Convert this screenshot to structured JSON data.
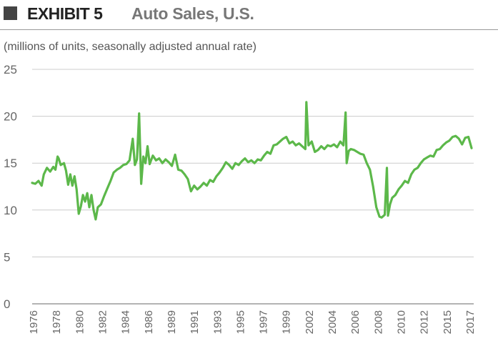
{
  "header": {
    "exhibit_label": "EXHIBIT 5",
    "title": "Auto Sales, U.S."
  },
  "subtitle": "(millions of units, seasonally adjusted annual rate)",
  "colors": {
    "line": "#5cb84a",
    "grid": "#cccccc",
    "axis": "#9a9a9a",
    "header_square": "#444444"
  },
  "chart_data": {
    "type": "line",
    "title": "Auto Sales, U.S.",
    "ylabel": "(millions of units, seasonally adjusted annual rate)",
    "xlabel": "",
    "ylim": [
      0,
      25
    ],
    "xlim": [
      1976,
      2017.7
    ],
    "y_ticks": [
      "0",
      "5",
      "10",
      "15",
      "20",
      "25"
    ],
    "x_ticks": [
      "1976",
      "1978",
      "1980",
      "1982",
      "1984",
      "1986",
      "1989",
      "1991",
      "1993",
      "1995",
      "1997",
      "1999",
      "2002",
      "2004",
      "2006",
      "2008",
      "2010",
      "2012",
      "2015",
      "2017"
    ],
    "grid": true,
    "series": [
      {
        "name": "Auto Sales",
        "x": [
          1976.0,
          1976.3,
          1976.6,
          1976.9,
          1977.1,
          1977.4,
          1977.7,
          1978.0,
          1978.2,
          1978.4,
          1978.5,
          1978.7,
          1979.0,
          1979.2,
          1979.4,
          1979.6,
          1979.8,
          1980.0,
          1980.2,
          1980.4,
          1980.6,
          1980.8,
          1981.0,
          1981.2,
          1981.4,
          1981.6,
          1981.8,
          1982.0,
          1982.2,
          1982.5,
          1982.8,
          1983.1,
          1983.4,
          1983.7,
          1984.0,
          1984.3,
          1984.6,
          1984.9,
          1985.2,
          1985.5,
          1985.7,
          1985.9,
          1986.1,
          1986.3,
          1986.5,
          1986.7,
          1986.9,
          1987.1,
          1987.4,
          1987.7,
          1988.0,
          1988.3,
          1988.6,
          1988.9,
          1989.2,
          1989.5,
          1989.8,
          1990.1,
          1990.4,
          1990.7,
          1991.0,
          1991.3,
          1991.6,
          1991.9,
          1992.2,
          1992.5,
          1992.8,
          1993.1,
          1993.4,
          1993.7,
          1994.0,
          1994.3,
          1994.6,
          1994.9,
          1995.2,
          1995.5,
          1995.8,
          1996.1,
          1996.4,
          1996.7,
          1997.0,
          1997.3,
          1997.6,
          1997.9,
          1998.2,
          1998.5,
          1998.8,
          1999.1,
          1999.4,
          1999.7,
          2000.0,
          2000.3,
          2000.6,
          2000.9,
          2001.2,
          2001.5,
          2001.8,
          2001.9,
          2002.1,
          2002.4,
          2002.7,
          2003.0,
          2003.3,
          2003.6,
          2003.9,
          2004.2,
          2004.5,
          2004.8,
          2005.1,
          2005.4,
          2005.6,
          2005.7,
          2005.9,
          2006.1,
          2006.4,
          2006.7,
          2007.0,
          2007.3,
          2007.6,
          2007.9,
          2008.2,
          2008.5,
          2008.8,
          2009.0,
          2009.3,
          2009.5,
          2009.6,
          2009.8,
          2010.0,
          2010.3,
          2010.6,
          2010.9,
          2011.2,
          2011.5,
          2011.8,
          2012.1,
          2012.4,
          2012.7,
          2013.0,
          2013.3,
          2013.6,
          2013.9,
          2014.2,
          2014.5,
          2014.8,
          2015.1,
          2015.4,
          2015.7,
          2016.0,
          2016.3,
          2016.6,
          2016.9,
          2017.2,
          2017.5
        ],
        "values": [
          12.9,
          12.8,
          13.1,
          12.6,
          13.8,
          14.5,
          14.1,
          14.6,
          14.3,
          15.7,
          15.5,
          14.8,
          15.0,
          14.2,
          12.7,
          13.8,
          12.6,
          13.6,
          12.2,
          9.6,
          10.4,
          11.6,
          10.9,
          11.8,
          10.3,
          11.6,
          10.0,
          9.0,
          10.3,
          10.6,
          11.5,
          12.3,
          13.1,
          14.0,
          14.3,
          14.5,
          14.8,
          14.9,
          15.3,
          17.6,
          14.8,
          15.4,
          20.3,
          12.8,
          15.7,
          15.0,
          16.8,
          14.9,
          15.8,
          15.3,
          15.5,
          15.0,
          15.4,
          15.1,
          14.7,
          15.9,
          14.3,
          14.2,
          13.8,
          13.3,
          12.0,
          12.6,
          12.2,
          12.5,
          12.9,
          12.6,
          13.2,
          13.0,
          13.6,
          14.0,
          14.5,
          15.1,
          14.8,
          14.4,
          15.0,
          14.8,
          15.2,
          15.5,
          15.1,
          15.3,
          15.0,
          15.4,
          15.3,
          15.8,
          16.2,
          16.0,
          16.9,
          17.0,
          17.3,
          17.6,
          17.8,
          17.1,
          17.3,
          16.9,
          17.1,
          16.8,
          16.5,
          21.5,
          16.9,
          17.3,
          16.2,
          16.4,
          16.8,
          16.5,
          16.9,
          16.8,
          17.0,
          16.7,
          17.3,
          16.9,
          20.4,
          15.0,
          16.3,
          16.5,
          16.4,
          16.2,
          16.0,
          15.9,
          15.0,
          14.3,
          12.5,
          10.3,
          9.3,
          9.2,
          9.5,
          14.5,
          9.4,
          10.6,
          11.3,
          11.6,
          12.2,
          12.6,
          13.1,
          12.9,
          13.8,
          14.3,
          14.5,
          15.0,
          15.4,
          15.6,
          15.8,
          15.7,
          16.4,
          16.5,
          16.9,
          17.2,
          17.4,
          17.8,
          17.9,
          17.6,
          17.0,
          17.7,
          17.8,
          16.6
        ]
      }
    ]
  }
}
